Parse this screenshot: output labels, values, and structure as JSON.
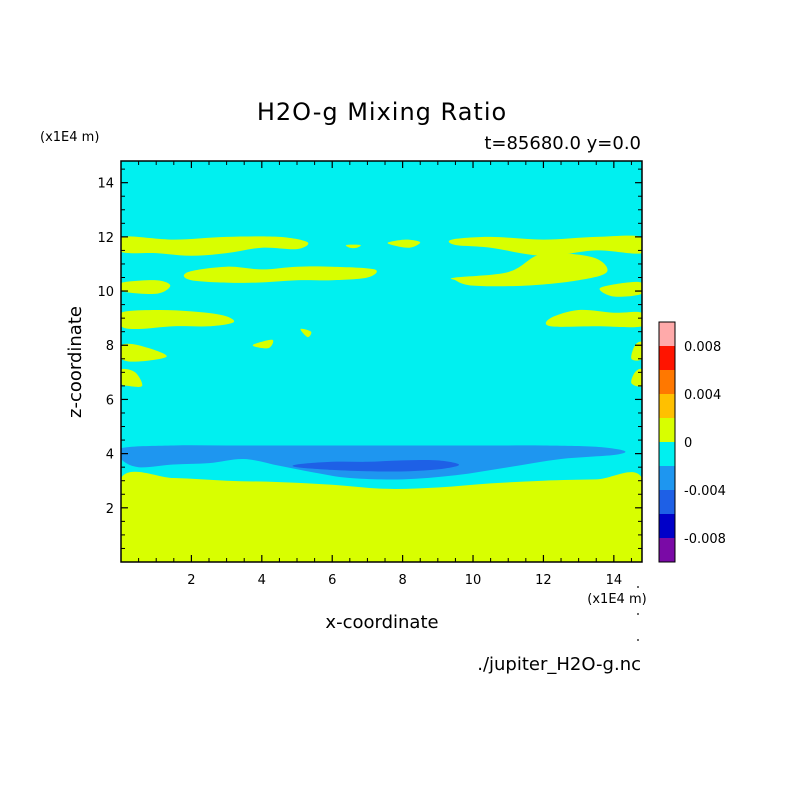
{
  "chart_data": {
    "type": "heatmap",
    "title": "H2O-g Mixing Ratio",
    "subtitle": "t=85680.0 y=0.0",
    "xlabel": "x-coordinate",
    "ylabel": "z-coordinate",
    "x_unit": "(x1E4 m)",
    "y_unit": "(x1E4 m)",
    "source": "./jupiter_H2O-g.nc",
    "xlim": [
      0,
      14.8
    ],
    "ylim": [
      0,
      14.8
    ],
    "x_ticks": [
      2,
      4,
      6,
      8,
      10,
      12,
      14
    ],
    "y_ticks": [
      2,
      4,
      6,
      8,
      10,
      12,
      14
    ],
    "colorbar": {
      "levels": [
        -0.01,
        -0.008,
        -0.006,
        -0.004,
        -0.002,
        0,
        0.002,
        0.004,
        0.006,
        0.008,
        0.01
      ],
      "colors": [
        "#7a0aa6",
        "#0000c8",
        "#1e60e6",
        "#1e96f0",
        "#00f0f0",
        "#d8ff00",
        "#ffc000",
        "#ff7800",
        "#ff1400",
        "#ffaaaa"
      ],
      "tick_labels": [
        "0.008",
        "0.004",
        "0",
        "-0.004",
        "-0.008"
      ]
    },
    "background_band": "-0.002 to 0",
    "regions": [
      {
        "band": "0 to 0.002",
        "x": [
          0,
          1.5,
          3,
          4.5,
          6,
          7.5,
          9,
          10.5,
          12,
          13.5,
          14.8,
          14.8,
          0
        ],
        "y": [
          3.1,
          3.1,
          3.0,
          2.95,
          2.85,
          2.7,
          2.75,
          2.9,
          3.0,
          3.05,
          3.1,
          0,
          0
        ]
      },
      {
        "band": "-0.004 to -0.002",
        "x": [
          0,
          1.5,
          3,
          4.5,
          6,
          7.5,
          9,
          10.5,
          12,
          13.5,
          14.3,
          14.0,
          12.5,
          11,
          9.5,
          8,
          6.5,
          5.5,
          4.5,
          3.5,
          2.5,
          1.5,
          0.5,
          0
        ],
        "y": [
          4.2,
          4.3,
          4.3,
          4.3,
          4.3,
          4.3,
          4.3,
          4.3,
          4.3,
          4.25,
          4.1,
          3.95,
          3.8,
          3.5,
          3.2,
          3.05,
          3.1,
          3.3,
          3.55,
          3.8,
          3.65,
          3.6,
          3.5,
          3.8
        ]
      },
      {
        "band": "-0.006 to -0.004",
        "x": [
          5,
          6,
          7,
          8,
          9,
          9.6,
          9.2,
          8.2,
          7,
          6,
          5
        ],
        "y": [
          3.6,
          3.7,
          3.7,
          3.75,
          3.75,
          3.6,
          3.45,
          3.35,
          3.35,
          3.4,
          3.5
        ]
      },
      {
        "band": "0 to 0.002",
        "x": [
          0,
          1.5,
          3,
          4.5,
          5.3,
          5,
          4,
          3,
          2,
          1,
          0
        ],
        "y": [
          12.0,
          11.9,
          12.0,
          12.0,
          11.8,
          11.55,
          11.6,
          11.4,
          11.3,
          11.4,
          11.45
        ]
      },
      {
        "band": "0 to 0.002",
        "x": [
          9.4,
          10.5,
          12,
          13.5,
          14.8,
          14.8,
          13.5,
          12,
          10.5,
          9.5
        ],
        "y": [
          11.9,
          12.0,
          11.9,
          12.0,
          12.0,
          11.4,
          11.5,
          11.3,
          11.6,
          11.7
        ]
      },
      {
        "band": "0 to 0.002",
        "x": [
          7.6,
          8.1,
          8.5,
          8.2,
          7.7
        ],
        "y": [
          11.8,
          11.9,
          11.8,
          11.6,
          11.7
        ]
      },
      {
        "band": "0 to 0.002",
        "x": [
          6.4,
          6.8,
          6.7,
          6.5
        ],
        "y": [
          11.7,
          11.7,
          11.6,
          11.6
        ]
      },
      {
        "band": "0 to 0.002",
        "x": [
          1.9,
          3,
          4,
          5,
          6,
          7.2,
          7,
          6,
          5,
          3.5,
          2
        ],
        "y": [
          10.7,
          10.9,
          10.8,
          10.9,
          10.9,
          10.8,
          10.5,
          10.4,
          10.4,
          10.3,
          10.4
        ]
      },
      {
        "band": "0 to 0.002",
        "x": [
          9.5,
          11,
          11.8,
          12.5,
          13.5,
          13.8,
          13,
          11.5,
          10,
          9.5
        ],
        "y": [
          10.5,
          10.7,
          11.3,
          11.4,
          11.2,
          10.7,
          10.4,
          10.2,
          10.2,
          10.4
        ]
      },
      {
        "band": "0 to 0.002",
        "x": [
          0,
          1,
          1.4,
          1,
          0
        ],
        "y": [
          10.3,
          10.4,
          10.2,
          9.9,
          10.0
        ]
      },
      {
        "band": "0 to 0.002",
        "x": [
          13.6,
          14.3,
          14.8,
          14.8,
          14.0
        ],
        "y": [
          10.1,
          10.3,
          10.3,
          9.9,
          9.8
        ]
      },
      {
        "band": "0 to 0.002",
        "x": [
          0,
          1,
          2,
          2.9,
          3.2,
          2.5,
          1.5,
          0.5,
          0
        ],
        "y": [
          9.2,
          9.3,
          9.25,
          9.1,
          8.85,
          8.7,
          8.7,
          8.6,
          8.7
        ]
      },
      {
        "band": "0 to 0.002",
        "x": [
          12.2,
          13,
          14,
          14.8,
          14.8,
          13.5,
          12.2
        ],
        "y": [
          9.0,
          9.3,
          9.2,
          9.2,
          8.7,
          8.7,
          8.7
        ]
      },
      {
        "band": "0 to 0.002",
        "x": [
          5.1,
          5.4,
          5.3
        ],
        "y": [
          8.6,
          8.5,
          8.3
        ]
      },
      {
        "band": "0 to 0.002",
        "x": [
          3.8,
          4.3,
          4.2,
          3.8
        ],
        "y": [
          8.05,
          8.2,
          7.9,
          7.95
        ]
      },
      {
        "band": "0 to 0.002",
        "x": [
          0,
          0.5,
          1.3,
          0.5,
          0
        ],
        "y": [
          8.0,
          8.0,
          7.6,
          7.4,
          7.5
        ]
      },
      {
        "band": "0 to 0.002",
        "x": [
          14.6,
          14.8,
          14.8,
          14.5
        ],
        "y": [
          8.0,
          8.1,
          7.5,
          7.5
        ]
      },
      {
        "band": "0 to 0.002",
        "x": [
          0,
          0.4,
          0.6,
          0.2,
          0
        ],
        "y": [
          7.1,
          7.0,
          6.5,
          6.5,
          6.6
        ]
      },
      {
        "band": "0 to 0.002",
        "x": [
          14.6,
          14.8,
          14.8,
          14.5
        ],
        "y": [
          7.0,
          7.1,
          6.5,
          6.6
        ]
      }
    ]
  }
}
